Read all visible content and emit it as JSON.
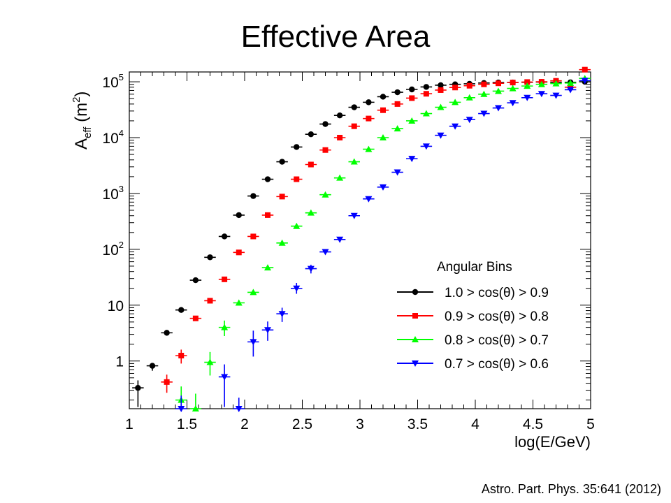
{
  "slide": {
    "title": "Effective Area",
    "citation": "Astro. Part. Phys. 35:641 (2012)"
  },
  "chart_data": {
    "type": "scatter",
    "title": "",
    "xlabel": "log(E/GeV)",
    "ylabel_main": "A",
    "ylabel_sub": "eff",
    "ylabel_unit_open": " (m",
    "ylabel_unit_sup": "2",
    "ylabel_unit_close": ")",
    "xlim": [
      1,
      5
    ],
    "ylim": [
      0.14,
      150000
    ],
    "yscale": "log",
    "grid": false,
    "x_ticks": [
      1,
      1.5,
      2,
      2.5,
      3,
      3.5,
      4,
      4.5,
      5
    ],
    "x_tick_labels": [
      "1",
      "1.5",
      "2",
      "2.5",
      "3",
      "3.5",
      "4",
      "4.5",
      "5"
    ],
    "y_tick_labels": [
      {
        "value": 1,
        "base": "1",
        "sup": ""
      },
      {
        "value": 10,
        "base": "10",
        "sup": ""
      },
      {
        "value": 100,
        "base": "10",
        "sup": "2"
      },
      {
        "value": 1000,
        "base": "10",
        "sup": "3"
      },
      {
        "value": 10000,
        "base": "10",
        "sup": "4"
      },
      {
        "value": 100000,
        "base": "10",
        "sup": "5"
      }
    ],
    "legend": {
      "title": "Angular Bins",
      "placement": "bottom-right"
    },
    "series": [
      {
        "name": "1.0 > cos(θ) > 0.9",
        "color": "#000000",
        "marker": "circle",
        "x": [
          1.075,
          1.2,
          1.325,
          1.45,
          1.575,
          1.7,
          1.825,
          1.95,
          2.075,
          2.2,
          2.325,
          2.45,
          2.575,
          2.7,
          2.825,
          2.95,
          3.075,
          3.2,
          3.325,
          3.45,
          3.575,
          3.7,
          3.825,
          3.95,
          4.075,
          4.2,
          4.325,
          4.45,
          4.575,
          4.7,
          4.825,
          4.95
        ],
        "y": [
          0.33,
          0.82,
          3.2,
          8.2,
          28,
          72,
          170,
          410,
          900,
          1800,
          3700,
          6800,
          11500,
          17500,
          25000,
          35000,
          43000,
          54000,
          65000,
          73000,
          81000,
          87000,
          90000,
          92000,
          95000,
          97000,
          97000,
          98000,
          99000,
          98000,
          98000,
          100000
        ],
        "yerr_low": [
          0.18,
          0.15,
          0,
          0,
          0,
          0,
          0,
          0,
          0,
          0,
          0,
          0,
          0,
          0,
          0,
          0,
          0,
          0,
          0,
          0,
          0,
          0,
          0,
          0,
          0,
          0,
          0,
          0,
          0,
          0,
          0,
          0
        ],
        "yerr_high": [
          0.12,
          0.1,
          0,
          0,
          0,
          0,
          0,
          0,
          0,
          0,
          0,
          0,
          0,
          0,
          0,
          0,
          0,
          0,
          0,
          0,
          0,
          0,
          0,
          0,
          0,
          0,
          0,
          0,
          0,
          0,
          0,
          0
        ]
      },
      {
        "name": "0.9 > cos(θ) > 0.8",
        "color": "#ff0000",
        "marker": "square",
        "x": [
          1.325,
          1.45,
          1.575,
          1.7,
          1.825,
          1.95,
          2.075,
          2.2,
          2.325,
          2.45,
          2.575,
          2.7,
          2.825,
          2.95,
          3.075,
          3.2,
          3.325,
          3.45,
          3.575,
          3.7,
          3.825,
          3.95,
          4.075,
          4.2,
          4.325,
          4.45,
          4.575,
          4.7,
          4.825,
          4.95
        ],
        "y": [
          0.42,
          1.25,
          5.8,
          12,
          29,
          88,
          170,
          410,
          880,
          1800,
          3300,
          6000,
          10000,
          16000,
          22000,
          31000,
          40000,
          51000,
          61000,
          71000,
          79000,
          85000,
          90000,
          94000,
          97000,
          99000,
          100000,
          104000,
          80000,
          165000
        ],
        "yerr_low": [
          0.15,
          0.35,
          0,
          0,
          0,
          0,
          0,
          0,
          0,
          0,
          0,
          0,
          0,
          0,
          0,
          0,
          0,
          0,
          0,
          0,
          0,
          0,
          0,
          0,
          0,
          0,
          0,
          0,
          0,
          0
        ],
        "yerr_high": [
          0.15,
          0.35,
          0,
          0,
          0,
          0,
          0,
          0,
          0,
          0,
          0,
          0,
          0,
          0,
          0,
          0,
          0,
          0,
          0,
          0,
          0,
          0,
          0,
          0,
          0,
          0,
          0,
          0,
          0,
          0
        ]
      },
      {
        "name": "0.8 > cos(θ) > 0.7",
        "color": "#00ff00",
        "marker": "triangle-up",
        "x": [
          1.45,
          1.575,
          1.7,
          1.825,
          1.95,
          2.075,
          2.2,
          2.325,
          2.45,
          2.575,
          2.7,
          2.825,
          2.95,
          3.075,
          3.2,
          3.325,
          3.45,
          3.575,
          3.7,
          3.825,
          3.95,
          4.075,
          4.2,
          4.325,
          4.45,
          4.575,
          4.7,
          4.825,
          4.95
        ],
        "y": [
          0.2,
          0.14,
          0.95,
          4,
          11,
          17,
          47,
          130,
          260,
          450,
          950,
          1900,
          3700,
          6200,
          10000,
          14500,
          20000,
          27000,
          35000,
          43000,
          52000,
          60000,
          68000,
          76000,
          84000,
          90000,
          93000,
          95000,
          115000
        ],
        "yerr_low": [
          0.08,
          0.03,
          0.4,
          1.2,
          0,
          0,
          0,
          0,
          0,
          0,
          0,
          0,
          0,
          0,
          0,
          0,
          0,
          0,
          0,
          0,
          0,
          0,
          0,
          0,
          0,
          0,
          0,
          0,
          0
        ],
        "yerr_high": [
          0.15,
          0.12,
          0.5,
          1.3,
          0,
          0,
          0,
          0,
          0,
          0,
          0,
          0,
          0,
          0,
          0,
          0,
          0,
          0,
          0,
          0,
          0,
          0,
          0,
          0,
          0,
          0,
          0,
          0,
          0
        ]
      },
      {
        "name": "0.7 > cos(θ) > 0.6",
        "color": "#0000ff",
        "marker": "triangle-down",
        "x": [
          1.45,
          1.825,
          1.95,
          2.075,
          2.2,
          2.325,
          2.45,
          2.575,
          2.7,
          2.825,
          2.95,
          3.075,
          3.2,
          3.325,
          3.45,
          3.575,
          3.7,
          3.825,
          3.95,
          4.075,
          4.2,
          4.325,
          4.45,
          4.575,
          4.7,
          4.825,
          4.95
        ],
        "y": [
          0.14,
          0.52,
          0.14,
          2.2,
          3.6,
          7,
          20,
          45,
          90,
          150,
          400,
          800,
          1300,
          2400,
          4200,
          7000,
          11000,
          16000,
          21000,
          27000,
          34000,
          42000,
          52000,
          61000,
          57000,
          72000,
          105000
        ],
        "yerr_low": [
          0.05,
          0.37,
          0.04,
          1.0,
          1.3,
          2.0,
          4,
          8,
          0,
          0,
          0,
          0,
          0,
          0,
          0,
          0,
          0,
          0,
          0,
          0,
          0,
          0,
          0,
          0,
          0,
          0,
          0
        ],
        "yerr_high": [
          0.1,
          0.35,
          0.08,
          1.3,
          1.5,
          2.0,
          5,
          8,
          0,
          0,
          0,
          0,
          0,
          0,
          0,
          0,
          0,
          0,
          0,
          0,
          0,
          0,
          0,
          0,
          0,
          0,
          0
        ]
      }
    ]
  }
}
